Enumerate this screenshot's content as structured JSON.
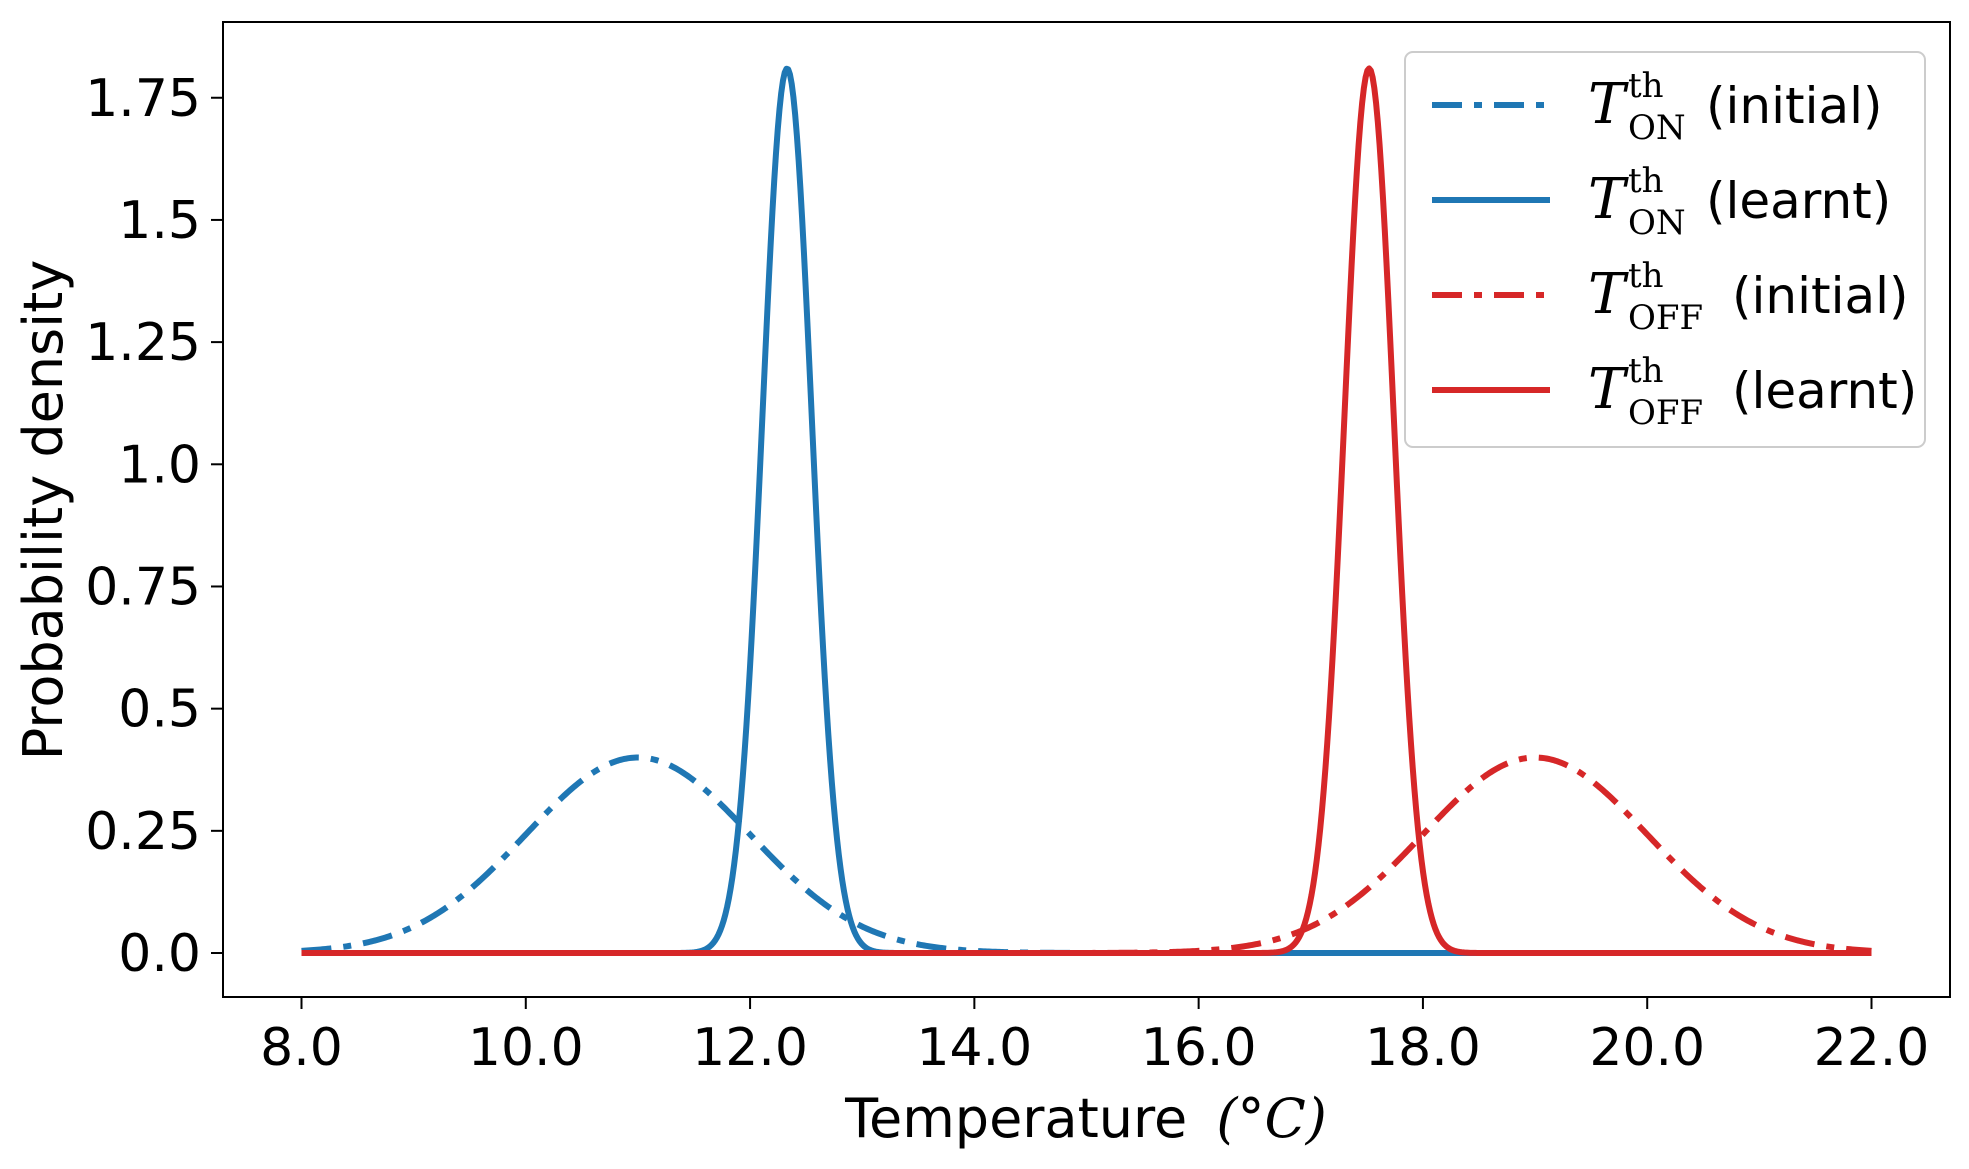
{
  "chart_data": {
    "type": "line",
    "xlabel": "Temperature",
    "xlabel_unit": "(°C)",
    "ylabel": "Probability density",
    "xlim": [
      7.3,
      22.7
    ],
    "ylim": [
      -0.09,
      1.905
    ],
    "x_ticks": [
      8.0,
      10.0,
      12.0,
      14.0,
      16.0,
      18.0,
      20.0,
      22.0
    ],
    "x_tick_labels": [
      "8.0",
      "10.0",
      "12.0",
      "14.0",
      "16.0",
      "18.0",
      "20.0",
      "22.0"
    ],
    "y_ticks": [
      0.0,
      0.25,
      0.5,
      0.75,
      1.0,
      1.25,
      1.5,
      1.75
    ],
    "y_tick_labels": [
      "0.0",
      "0.25",
      "0.5",
      "0.75",
      "1.0",
      "1.25",
      "1.5",
      "1.75"
    ],
    "grid": false,
    "legend_position": "top-right",
    "x_range": [
      8.0,
      22.0
    ],
    "series": [
      {
        "id": "on_initial",
        "symbol": "T",
        "superscript": "th",
        "subscript": "ON",
        "suffix": "(initial)",
        "color": "#1f77b4",
        "linestyle": "dashdot",
        "distribution": "normal",
        "mean": 11.0,
        "std": 1.0,
        "peak": 0.4
      },
      {
        "id": "on_learnt",
        "symbol": "T",
        "superscript": "th",
        "subscript": "ON",
        "suffix": "(learnt)",
        "color": "#1f77b4",
        "linestyle": "solid",
        "distribution": "normal",
        "mean": 12.33,
        "std": 0.22,
        "peak": 1.81
      },
      {
        "id": "off_initial",
        "symbol": "T",
        "superscript": "th",
        "subscript": "OFF",
        "suffix": "(initial)",
        "color": "#d62728",
        "linestyle": "dashdot",
        "distribution": "normal",
        "mean": 19.0,
        "std": 1.0,
        "peak": 0.4
      },
      {
        "id": "off_learnt",
        "symbol": "T",
        "superscript": "th",
        "subscript": "OFF",
        "suffix": "(learnt)",
        "color": "#d62728",
        "linestyle": "solid",
        "distribution": "normal",
        "mean": 17.52,
        "std": 0.22,
        "peak": 1.81
      }
    ]
  }
}
